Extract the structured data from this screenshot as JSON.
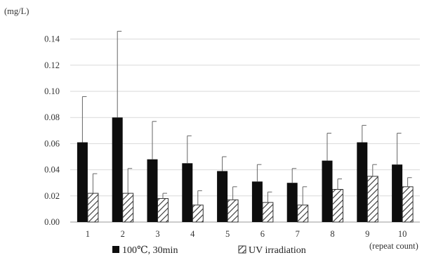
{
  "chart_data": {
    "type": "bar",
    "title": "",
    "ylabel": "(mg/L)",
    "xlabel": "(repeat count)",
    "ylim": [
      0,
      0.15
    ],
    "yticks": [
      "0.00",
      "0.02",
      "0.04",
      "0.06",
      "0.08",
      "0.10",
      "0.12",
      "0.14"
    ],
    "categories": [
      "1",
      "2",
      "3",
      "4",
      "5",
      "6",
      "7",
      "8",
      "9",
      "10"
    ],
    "grid": true,
    "legend_position": "bottom",
    "series": [
      {
        "name": "100℃, 30min",
        "color": "#0d0d0d",
        "pattern": "solid",
        "values": [
          0.061,
          0.08,
          0.048,
          0.045,
          0.039,
          0.031,
          0.03,
          0.047,
          0.061,
          0.044
        ],
        "error": [
          0.035,
          0.066,
          0.029,
          0.021,
          0.011,
          0.013,
          0.011,
          0.021,
          0.013,
          0.024
        ]
      },
      {
        "name": "UV irradiation",
        "color": "#333333",
        "pattern": "hatched",
        "values": [
          0.022,
          0.022,
          0.018,
          0.013,
          0.017,
          0.015,
          0.013,
          0.025,
          0.035,
          0.027
        ],
        "error": [
          0.015,
          0.019,
          0.004,
          0.011,
          0.01,
          0.008,
          0.014,
          0.008,
          0.009,
          0.007
        ]
      }
    ]
  }
}
